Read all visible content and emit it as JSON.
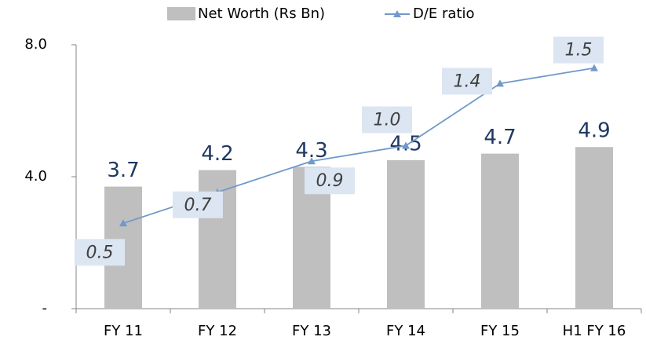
{
  "chart_data": {
    "type": "bar_line",
    "categories": [
      "FY 11",
      "FY 12",
      "FY 13",
      "FY 14",
      "FY 15",
      "H1 FY 16"
    ],
    "series": [
      {
        "name": "Net Worth (Rs Bn)",
        "type": "bar",
        "color": "#bfbfbf",
        "values": [
          3.7,
          4.2,
          4.3,
          4.5,
          4.7,
          4.9
        ]
      },
      {
        "name": "D/E ratio",
        "type": "line",
        "axis": "y2",
        "color": "#7199c9",
        "values": [
          0.5,
          0.7,
          0.9,
          1.0,
          1.4,
          1.5
        ],
        "value_labels": [
          "0.5",
          "0.7",
          "0.9",
          "1.0",
          "1.4",
          "1.5"
        ]
      }
    ],
    "ylim": [
      0,
      8
    ],
    "yticks": [
      {
        "value": 0,
        "label": "-"
      },
      {
        "value": 4,
        "label": "4.0"
      },
      {
        "value": 8,
        "label": "8.0"
      }
    ],
    "y2lim": [
      -0.05,
      1.65
    ],
    "legend": "top"
  }
}
